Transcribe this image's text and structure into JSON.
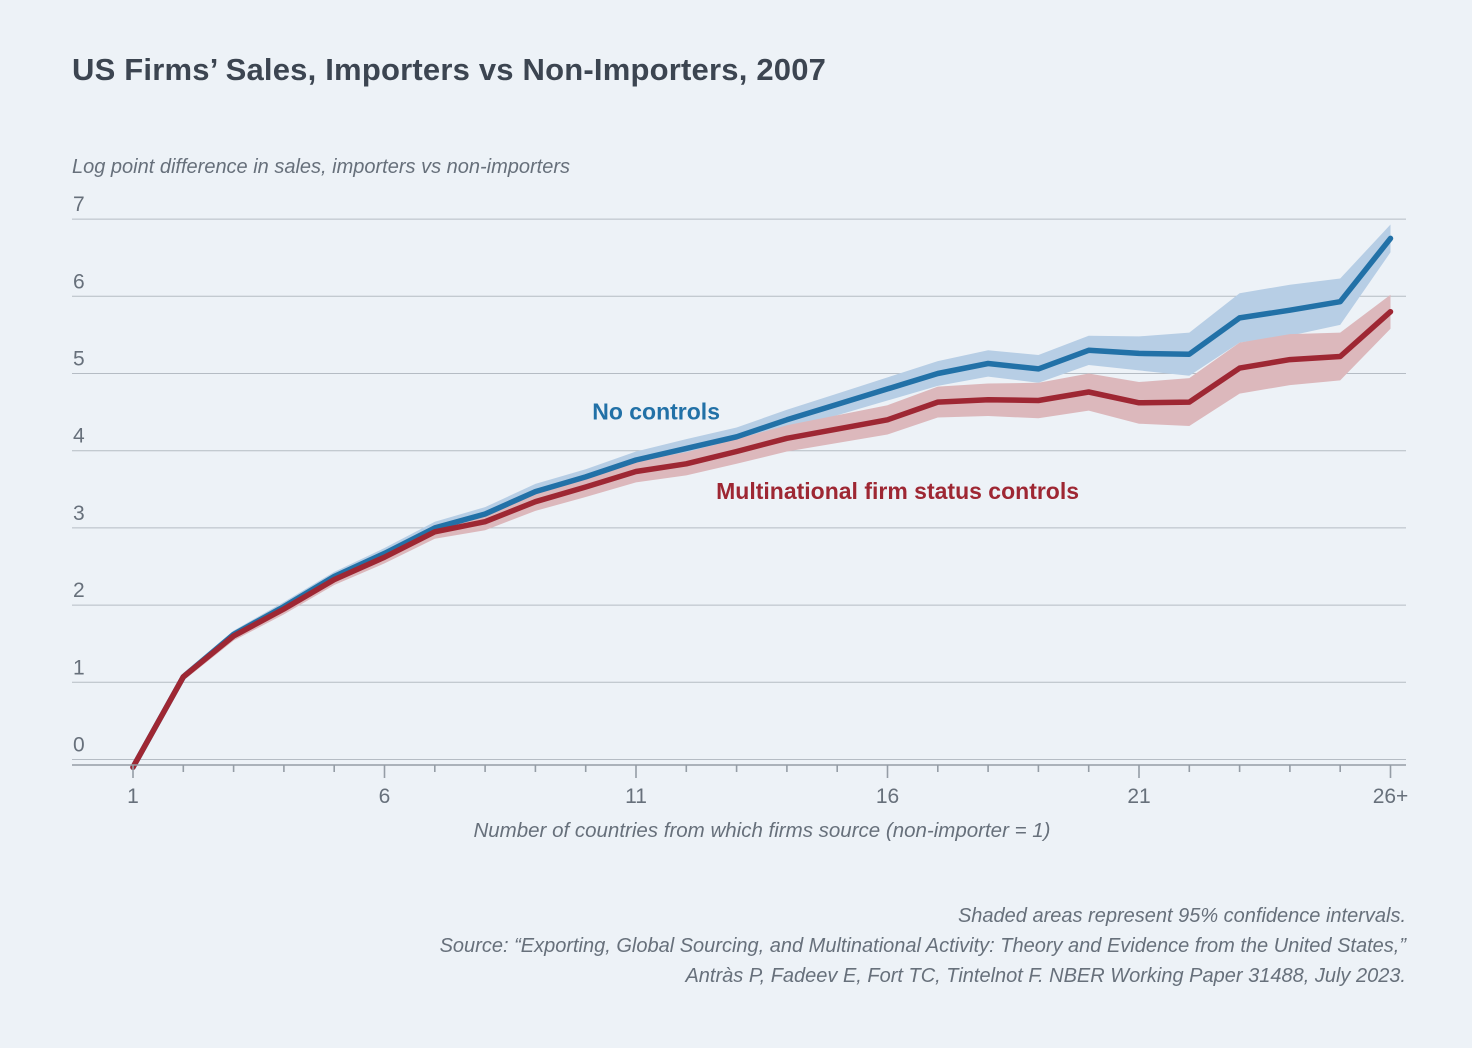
{
  "header": {
    "title": "US Firms’ Sales, Importers vs Non-Importers, 2007"
  },
  "chart_data": {
    "type": "line",
    "title": "US Firms’ Sales, Importers vs Non-Importers, 2007",
    "ylabel": "Log point difference in sales, importers vs non-importers",
    "xlabel": "Number of countries from which firms source (non-importer = 1)",
    "x": [
      1,
      2,
      3,
      4,
      5,
      6,
      7,
      8,
      9,
      10,
      11,
      12,
      13,
      14,
      15,
      16,
      17,
      18,
      19,
      20,
      21,
      22,
      23,
      24,
      25,
      26
    ],
    "x_tick_positions": [
      1,
      6,
      11,
      16,
      21,
      26
    ],
    "x_tick_labels": [
      "1",
      "6",
      "11",
      "16",
      "21",
      "26+"
    ],
    "yticks": [
      0,
      1,
      2,
      3,
      4,
      5,
      6,
      7
    ],
    "ylim": [
      -0.15,
      7.1
    ],
    "grid": "horizontal",
    "legend_position": "inline-annotations",
    "note": "Shaded areas represent 95% confidence intervals.",
    "series": [
      {
        "name": "No controls",
        "color": "#2271a7",
        "band_color": "#b7cee5",
        "label_pos": {
          "x": 11.4,
          "y": 4.51
        },
        "values": [
          -0.1,
          1.07,
          1.62,
          1.98,
          2.37,
          2.67,
          3.0,
          3.18,
          3.47,
          3.66,
          3.88,
          4.03,
          4.18,
          4.4,
          4.6,
          4.8,
          5.0,
          5.13,
          5.06,
          5.3,
          5.26,
          5.25,
          5.72,
          5.82,
          5.93,
          6.75
        ],
        "ci_halfwidth": [
          0.03,
          0.05,
          0.05,
          0.06,
          0.06,
          0.07,
          0.08,
          0.09,
          0.1,
          0.1,
          0.11,
          0.12,
          0.12,
          0.13,
          0.14,
          0.15,
          0.16,
          0.17,
          0.18,
          0.19,
          0.22,
          0.28,
          0.32,
          0.33,
          0.3,
          0.18
        ]
      },
      {
        "name": "Multinational firm status controls",
        "color": "#9e2733",
        "band_color": "#dcb8bc",
        "label_pos": {
          "x": 16.2,
          "y": 3.48
        },
        "values": [
          -0.1,
          1.07,
          1.6,
          1.95,
          2.33,
          2.62,
          2.95,
          3.08,
          3.34,
          3.53,
          3.73,
          3.83,
          3.99,
          4.16,
          4.28,
          4.4,
          4.63,
          4.66,
          4.65,
          4.76,
          4.62,
          4.63,
          5.07,
          5.18,
          5.22,
          5.8
        ],
        "ci_halfwidth": [
          0.03,
          0.05,
          0.06,
          0.07,
          0.07,
          0.08,
          0.09,
          0.11,
          0.12,
          0.13,
          0.14,
          0.15,
          0.16,
          0.17,
          0.18,
          0.19,
          0.2,
          0.21,
          0.23,
          0.24,
          0.27,
          0.31,
          0.33,
          0.33,
          0.31,
          0.22
        ]
      }
    ]
  },
  "footer": {
    "lines": [
      "Shaded areas represent 95% confidence intervals.",
      "Source: “Exporting, Global Sourcing, and Multinational Activity: Theory and Evidence from the United States,”",
      "Antràs P, Fadeev E, Fort TC, Tintelnot F. NBER Working Paper 31488, July 2023."
    ]
  },
  "colors": {
    "background": "#edf2f7",
    "title_text": "#3c4551",
    "muted_text": "#67707b",
    "gridline": "#b5bcc4",
    "axis": "#959da6"
  }
}
